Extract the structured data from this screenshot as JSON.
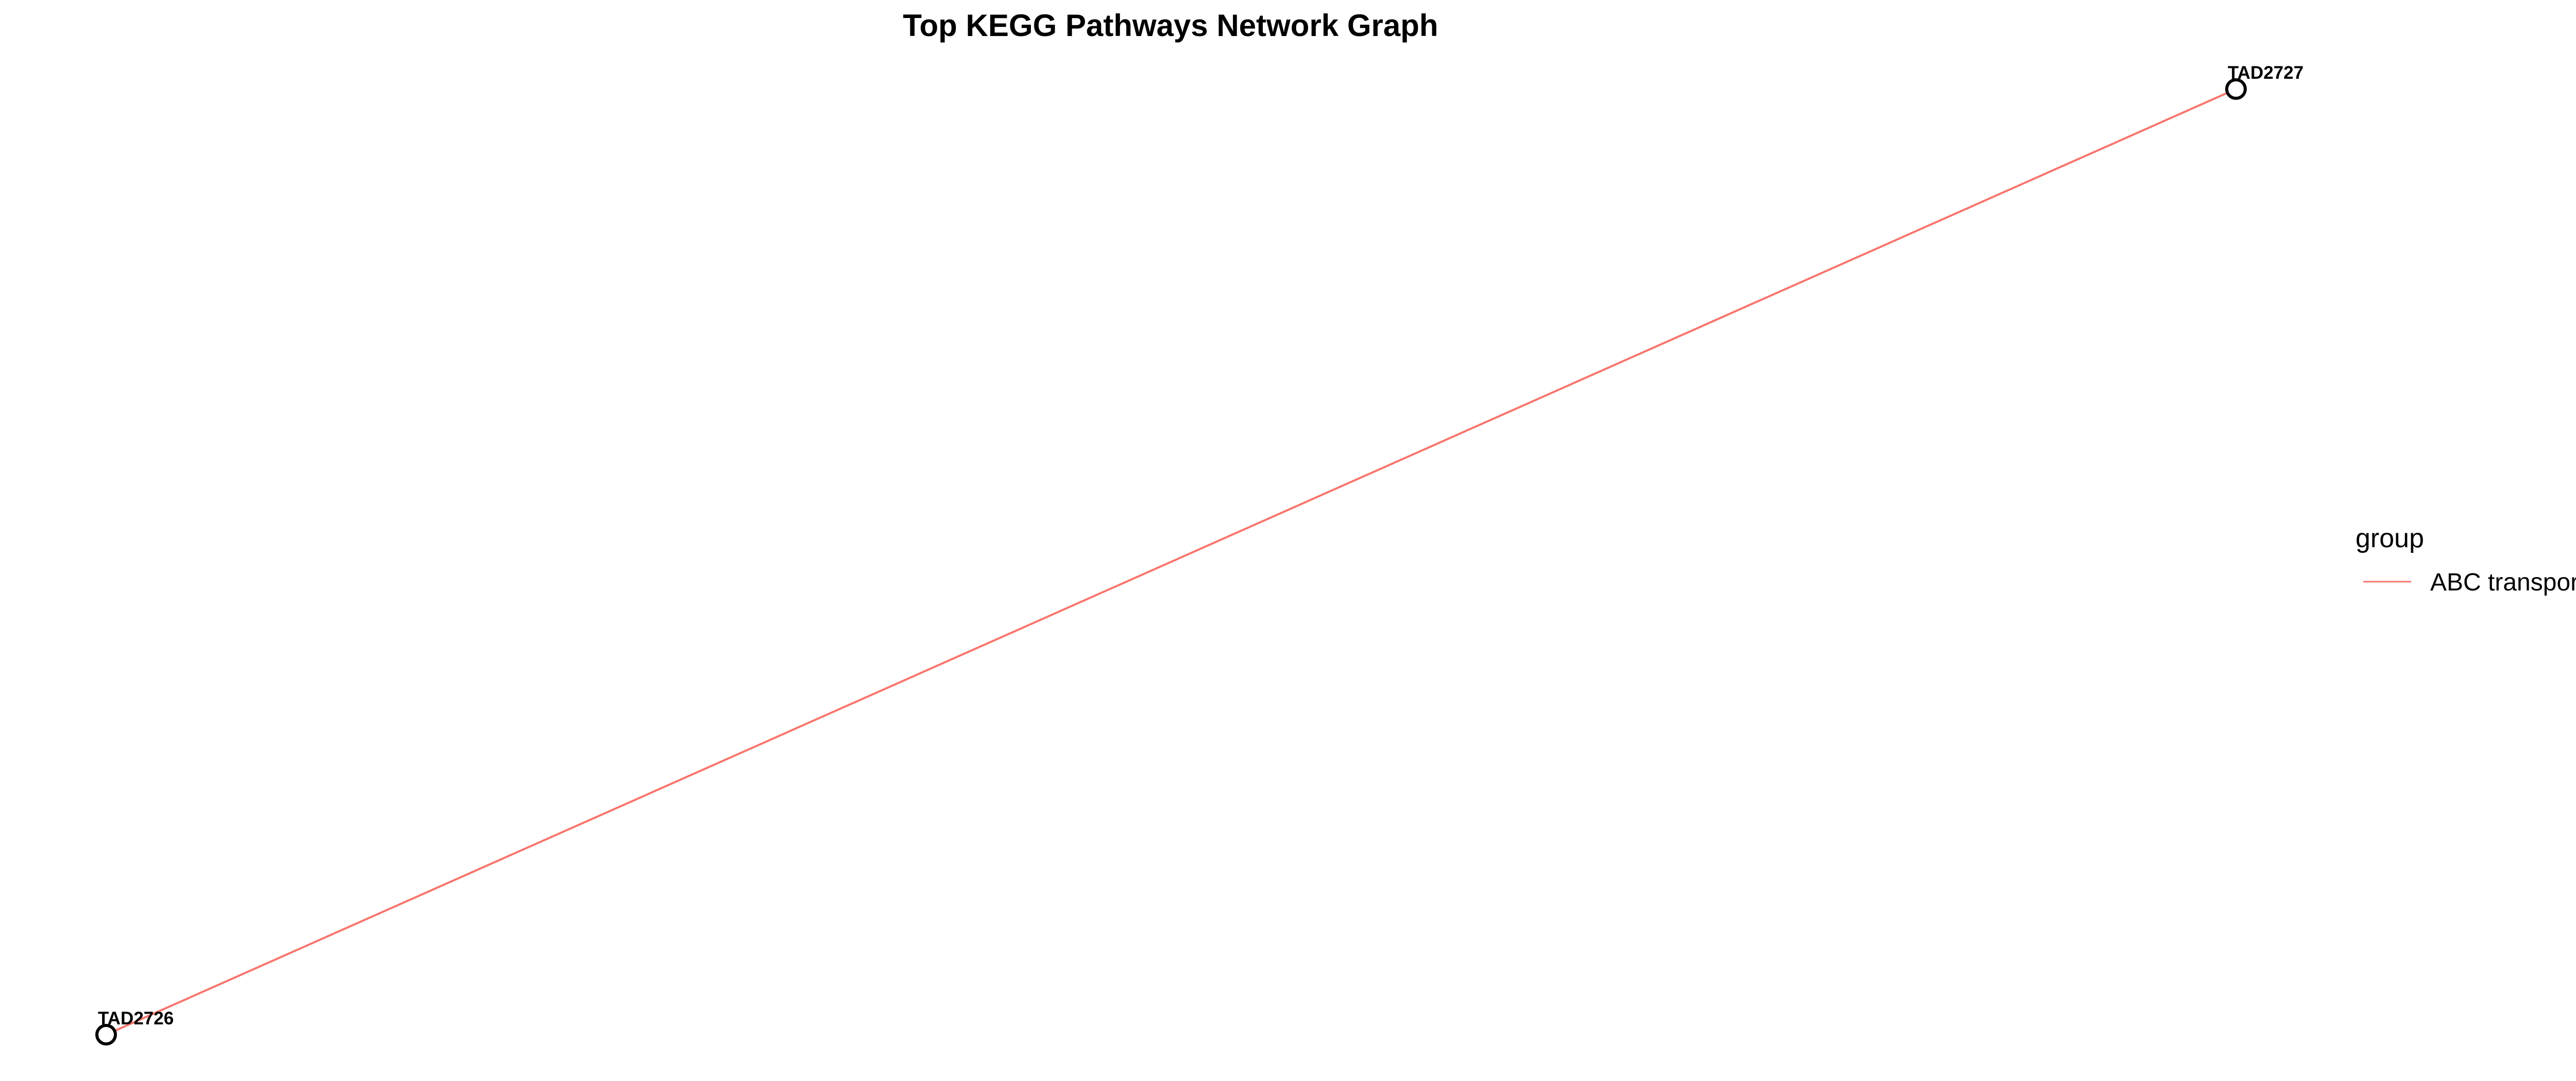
{
  "title": "Top KEGG Pathways Network Graph",
  "colors": {
    "edge": "#f8766d",
    "node_stroke": "#000000",
    "node_fill": "#ffffff",
    "background": "#ffffff"
  },
  "nodes": [
    {
      "id": "TAD2726",
      "label": "TAD2726"
    },
    {
      "id": "TAD2727",
      "label": "TAD2727"
    }
  ],
  "edges": [
    {
      "source": "TAD2726",
      "target": "TAD2727",
      "group": "ABC transporters"
    }
  ],
  "legend": {
    "title": "group",
    "items": [
      {
        "label": "ABC transporters",
        "color": "#f8766d"
      }
    ]
  }
}
